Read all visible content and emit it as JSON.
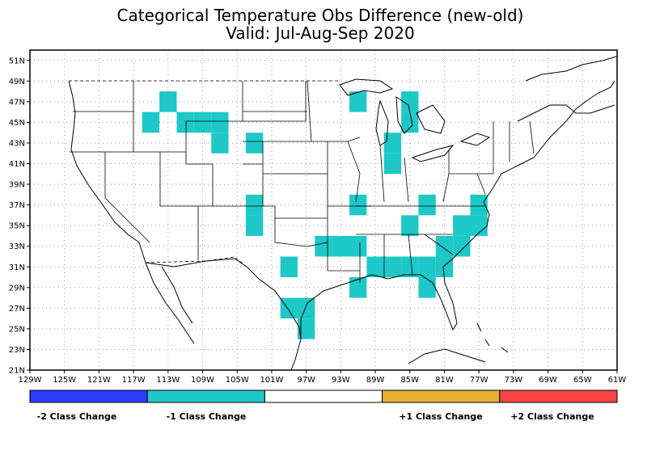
{
  "title": {
    "line1": "Categorical Temperature Obs Difference (new-old)",
    "line2": "Valid: Jul-Aug-Sep 2020"
  },
  "map": {
    "lon_min": -129,
    "lon_max": -61,
    "lat_min": 21,
    "lat_max": 52,
    "lon_ticks": [
      {
        "value": -129,
        "label": "129W"
      },
      {
        "value": -125,
        "label": "125W"
      },
      {
        "value": -121,
        "label": "121W"
      },
      {
        "value": -117,
        "label": "117W"
      },
      {
        "value": -113,
        "label": "113W"
      },
      {
        "value": -109,
        "label": "109W"
      },
      {
        "value": -105,
        "label": "105W"
      },
      {
        "value": -101,
        "label": "101W"
      },
      {
        "value": -97,
        "label": "97W"
      },
      {
        "value": -93,
        "label": "93W"
      },
      {
        "value": -89,
        "label": "89W"
      },
      {
        "value": -85,
        "label": "85W"
      },
      {
        "value": -81,
        "label": "81W"
      },
      {
        "value": -77,
        "label": "77W"
      },
      {
        "value": -73,
        "label": "73W"
      },
      {
        "value": -69,
        "label": "69W"
      },
      {
        "value": -65,
        "label": "65W"
      },
      {
        "value": -61,
        "label": "61W"
      }
    ],
    "lat_ticks": [
      {
        "value": 21,
        "label": "21N"
      },
      {
        "value": 23,
        "label": "23N"
      },
      {
        "value": 25,
        "label": "25N"
      },
      {
        "value": 27,
        "label": "27N"
      },
      {
        "value": 29,
        "label": "29N"
      },
      {
        "value": 31,
        "label": "31N"
      },
      {
        "value": 33,
        "label": "33N"
      },
      {
        "value": 35,
        "label": "35N"
      },
      {
        "value": 37,
        "label": "37N"
      },
      {
        "value": 39,
        "label": "39N"
      },
      {
        "value": 41,
        "label": "41N"
      },
      {
        "value": 43,
        "label": "43N"
      },
      {
        "value": 45,
        "label": "45N"
      },
      {
        "value": 47,
        "label": "47N"
      },
      {
        "value": 49,
        "label": "49N"
      },
      {
        "value": 51,
        "label": "51N"
      }
    ],
    "cell_size_deg": 2,
    "grid_lines": true
  },
  "legend": {
    "placement": "bottom",
    "categories": [
      {
        "label": "-2 Class Change",
        "value": -2,
        "color": "#2a3cfc"
      },
      {
        "label": "-1 Class Change",
        "value": -1,
        "color": "#1ec8c8"
      },
      {
        "label": "",
        "value": 0,
        "color": "#ffffff"
      },
      {
        "label": "+1 Class Change",
        "value": 1,
        "color": "#e6b032"
      },
      {
        "label": "+2 Class Change",
        "value": 2,
        "color": "#f84444"
      }
    ]
  },
  "chart_data": {
    "type": "heatmap",
    "title": "Categorical Temperature Obs Difference (new-old)",
    "subtitle": "Valid: Jul-Aug-Sep 2020",
    "xlim": [
      -129,
      -61
    ],
    "ylim": [
      21,
      52
    ],
    "cells": [
      {
        "lon": -113,
        "lat": 47,
        "value": -1
      },
      {
        "lon": -115,
        "lat": 45,
        "value": -1
      },
      {
        "lon": -111,
        "lat": 45,
        "value": -1
      },
      {
        "lon": -109,
        "lat": 45,
        "value": -1
      },
      {
        "lon": -107,
        "lat": 45,
        "value": -1
      },
      {
        "lon": -107,
        "lat": 43,
        "value": -1
      },
      {
        "lon": -103,
        "lat": 43,
        "value": -1
      },
      {
        "lon": -91,
        "lat": 47,
        "value": -1
      },
      {
        "lon": -85,
        "lat": 47,
        "value": -1
      },
      {
        "lon": -85,
        "lat": 45,
        "value": -1
      },
      {
        "lon": -87,
        "lat": 43,
        "value": -1
      },
      {
        "lon": -87,
        "lat": 41,
        "value": -1
      },
      {
        "lon": -103,
        "lat": 37,
        "value": -1
      },
      {
        "lon": -103,
        "lat": 35,
        "value": -1
      },
      {
        "lon": -91,
        "lat": 37,
        "value": -1
      },
      {
        "lon": -83,
        "lat": 37,
        "value": -1
      },
      {
        "lon": -77,
        "lat": 37,
        "value": -1
      },
      {
        "lon": -85,
        "lat": 35,
        "value": -1
      },
      {
        "lon": -79,
        "lat": 35,
        "value": -1
      },
      {
        "lon": -77,
        "lat": 35,
        "value": -1
      },
      {
        "lon": -95,
        "lat": 33,
        "value": -1
      },
      {
        "lon": -93,
        "lat": 33,
        "value": -1
      },
      {
        "lon": -91,
        "lat": 33,
        "value": -1
      },
      {
        "lon": -81,
        "lat": 33,
        "value": -1
      },
      {
        "lon": -79,
        "lat": 33,
        "value": -1
      },
      {
        "lon": -99,
        "lat": 31,
        "value": -1
      },
      {
        "lon": -89,
        "lat": 31,
        "value": -1
      },
      {
        "lon": -87,
        "lat": 31,
        "value": -1
      },
      {
        "lon": -85,
        "lat": 31,
        "value": -1
      },
      {
        "lon": -83,
        "lat": 31,
        "value": -1
      },
      {
        "lon": -81,
        "lat": 31,
        "value": -1
      },
      {
        "lon": -91,
        "lat": 29,
        "value": -1
      },
      {
        "lon": -83,
        "lat": 29,
        "value": -1
      },
      {
        "lon": -99,
        "lat": 27,
        "value": -1
      },
      {
        "lon": -97,
        "lat": 27,
        "value": -1
      },
      {
        "lon": -97,
        "lat": 25,
        "value": -1
      }
    ]
  }
}
